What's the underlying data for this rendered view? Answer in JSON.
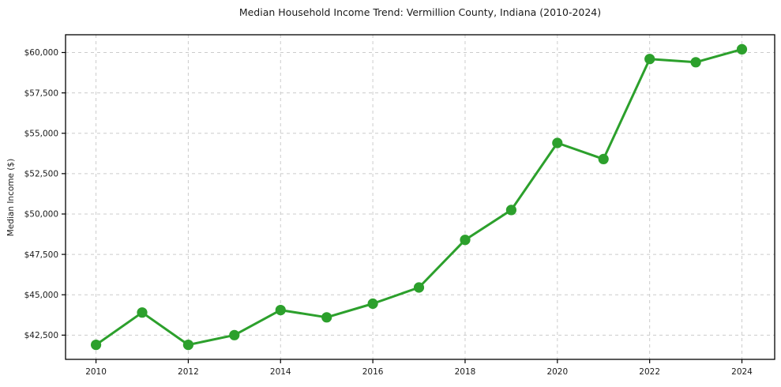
{
  "chart_data": {
    "type": "line",
    "title": "Median Household Income Trend: Vermillion County, Indiana (2010-2024)",
    "xlabel": "",
    "ylabel": "Median Income ($)",
    "x": [
      2010,
      2011,
      2012,
      2013,
      2014,
      2015,
      2016,
      2017,
      2018,
      2019,
      2020,
      2021,
      2022,
      2023,
      2024
    ],
    "values": [
      41900,
      43900,
      41900,
      42500,
      44050,
      43600,
      44450,
      45450,
      48400,
      50250,
      54400,
      53400,
      59600,
      59400,
      60200
    ],
    "x_ticks": [
      2010,
      2012,
      2014,
      2016,
      2018,
      2020,
      2022,
      2024
    ],
    "x_tick_labels": [
      "2010",
      "2012",
      "2014",
      "2016",
      "2018",
      "2020",
      "2022",
      "2024"
    ],
    "y_ticks": [
      42500,
      45000,
      47500,
      50000,
      52500,
      55000,
      57500,
      60000
    ],
    "y_tick_labels": [
      "$42,500",
      "$45,000",
      "$47,500",
      "$50,000",
      "$52,500",
      "$55,000",
      "$57,500",
      "$60,000"
    ],
    "xlim": [
      2009.34,
      2024.71
    ],
    "ylim": [
      41000,
      61100
    ],
    "grid": true,
    "grid_style": "dashed",
    "legend": false,
    "line_color": "#2ca02c",
    "marker": "circle",
    "marker_size": 6.6,
    "line_width": 3,
    "grid_color": "#cccccc",
    "axis_color": "#000000",
    "text_color": "#1a1a1a",
    "background_color": "#ffffff"
  }
}
